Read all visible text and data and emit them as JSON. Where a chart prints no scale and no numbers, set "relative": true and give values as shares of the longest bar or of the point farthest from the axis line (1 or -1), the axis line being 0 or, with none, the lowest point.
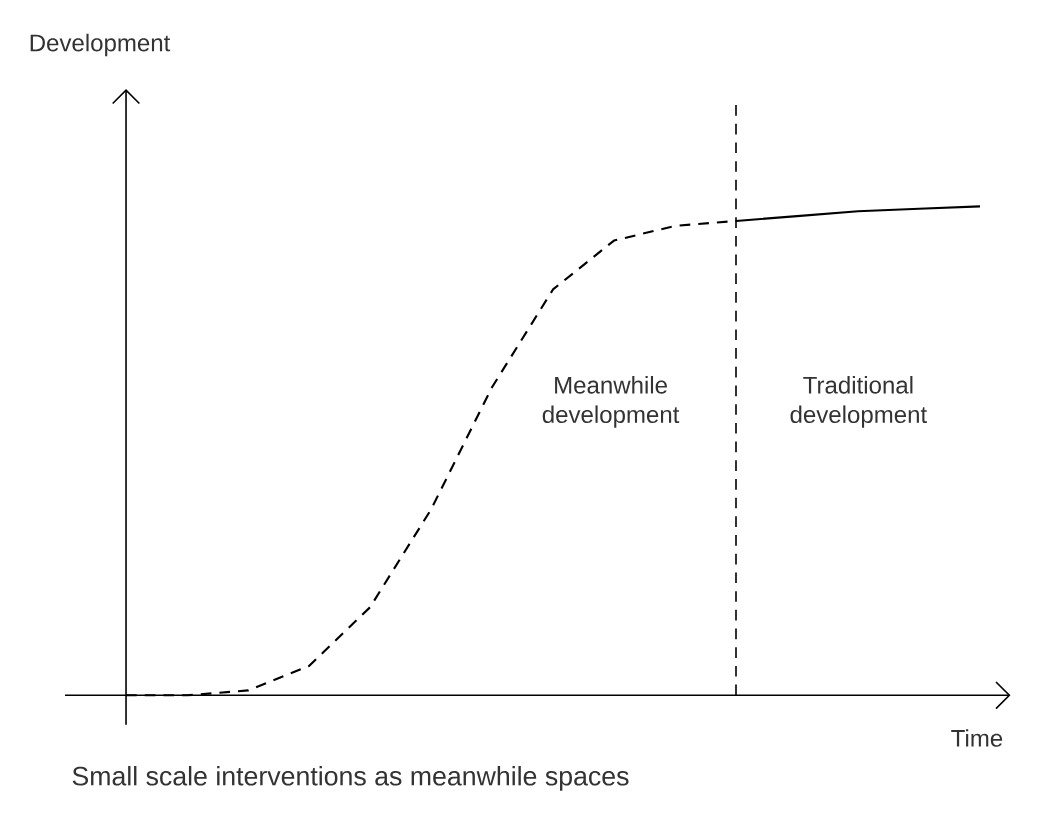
{
  "chart_data": {
    "type": "line",
    "relative": true,
    "xlabel": "Time",
    "categories": [
      null,
      null,
      null,
      null,
      null,
      null,
      null,
      null,
      null,
      null,
      null,
      null,
      null,
      null,
      null
    ],
    "series": [
      {
        "color": "#000000",
        "line_style": "dashed",
        "values": [
          0,
          0,
          0.01,
          0.06,
          0.18,
          0.38,
          0.63,
          0.83,
          0.93,
          0.96,
          0.97,
          null,
          null,
          null,
          null
        ]
      },
      {
        "color": "#000000",
        "line_style": "solid",
        "values": [
          null,
          null,
          null,
          null,
          null,
          null,
          null,
          null,
          null,
          null,
          0.97,
          0.98,
          0.99,
          0.995,
          1
        ]
      }
    ],
    "annotations": [
      "Meanwhile development",
      "Traditional development",
      "Small scale interventions as meanwhile spaces",
      "Development"
    ]
  }
}
